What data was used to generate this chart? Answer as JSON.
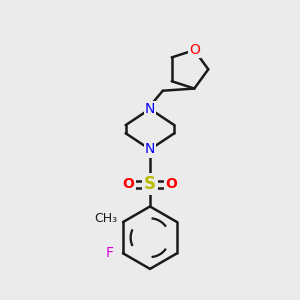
{
  "bg_color": "#ebebeb",
  "bond_color": "#1a1a1a",
  "N_color": "#0000ff",
  "O_color": "#ff0000",
  "F_color": "#dd00dd",
  "S_color": "#bbbb00",
  "line_width": 1.8,
  "font_size": 10,
  "fig_width": 3.0,
  "fig_height": 3.0,
  "dpi": 100,
  "xlim": [
    0,
    10
  ],
  "ylim": [
    0,
    10
  ]
}
